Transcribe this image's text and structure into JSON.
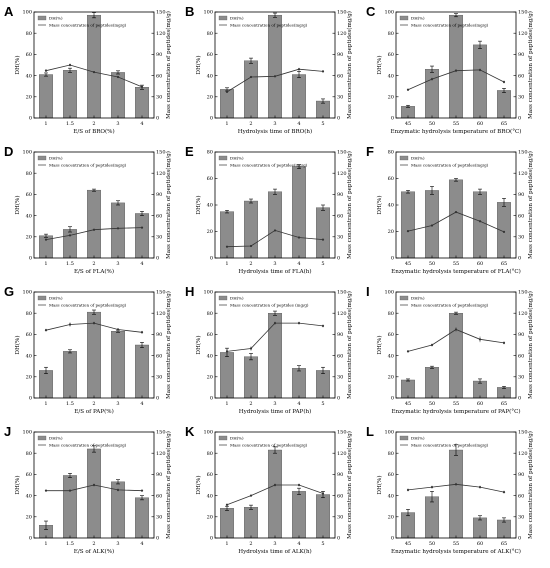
{
  "figure": {
    "legend_dh": "DH(%)",
    "y1_label": "DH(%)",
    "y2_label": "Mass concentration of peptides(mg/g)",
    "colors": {
      "bar": "#8c8c8c",
      "line": "#333333",
      "axis": "#000000"
    }
  },
  "chart_data": [
    {
      "id": "A",
      "type": "bar",
      "xlabel": "E/S of BRO(%)",
      "categories": [
        "1",
        "1.5",
        "2",
        "3",
        "4"
      ],
      "series": [
        {
          "name": "DH(%)",
          "values": [
            41,
            45,
            97,
            43,
            29
          ],
          "errors": [
            1.5,
            2,
            2.5,
            1.5,
            2
          ]
        },
        {
          "name": "Mass concentration of peptides(mg/g)",
          "values": [
            67,
            75,
            65,
            58,
            44
          ],
          "errors": [
            2,
            2,
            1.5,
            1.5,
            2
          ]
        }
      ],
      "ylim": [
        0,
        100
      ],
      "y2lim": [
        0,
        150
      ],
      "yticks": [
        0,
        20,
        40,
        60,
        80,
        100
      ],
      "y2ticks": [
        0,
        30,
        60,
        90,
        120,
        150
      ],
      "legend_line": "Mass concentration of peptides(mg/g)"
    },
    {
      "id": "B",
      "type": "bar",
      "xlabel": "Hydrolysis time of BRO(h)",
      "categories": [
        "1",
        "2",
        "3",
        "4",
        "5"
      ],
      "series": [
        {
          "name": "DH(%)",
          "values": [
            27,
            54,
            97,
            41,
            16
          ],
          "errors": [
            1.5,
            2.5,
            2,
            3,
            2
          ]
        },
        {
          "name": "Mass concentration of peptides(mg/g)",
          "values": [
            37,
            58,
            59,
            69,
            66
          ],
          "errors": [
            1,
            1.5,
            1.5,
            2,
            1.5
          ]
        }
      ],
      "ylim": [
        0,
        100
      ],
      "y2lim": [
        0,
        150
      ],
      "yticks": [
        0,
        20,
        40,
        60,
        80,
        100
      ],
      "y2ticks": [
        0,
        30,
        60,
        90,
        120,
        150
      ],
      "legend_line": "Mass concentration of peptides(mg/g)"
    },
    {
      "id": "C",
      "type": "bar",
      "xlabel": "Enzymatic hydrolysis temperature of BRO(°C)",
      "categories": [
        "45",
        "50",
        "55",
        "60",
        "65"
      ],
      "series": [
        {
          "name": "DH(%)",
          "values": [
            11,
            46,
            97,
            69,
            26
          ],
          "errors": [
            1,
            3,
            1.5,
            3.5,
            2
          ]
        },
        {
          "name": "Mass concentration of peptides(mg/g)",
          "values": [
            40,
            55,
            67,
            68,
            51
          ],
          "errors": [
            1.5,
            2,
            2,
            2,
            2
          ]
        }
      ],
      "ylim": [
        0,
        100
      ],
      "y2lim": [
        0,
        150
      ],
      "yticks": [
        0,
        20,
        40,
        60,
        80,
        100
      ],
      "y2ticks": [
        0,
        30,
        60,
        90,
        120,
        150
      ],
      "legend_line": "Mass concentration of peptides(mg/g)"
    },
    {
      "id": "D",
      "type": "bar",
      "xlabel": "E/S of FLA(%)",
      "categories": [
        "1",
        "1.5",
        "2",
        "3",
        "4"
      ],
      "series": [
        {
          "name": "DH(%)",
          "values": [
            21,
            27,
            64,
            52,
            42
          ],
          "errors": [
            1.5,
            2.5,
            1,
            2,
            2
          ]
        },
        {
          "name": "Mass concentration of peptides(mg/g)",
          "values": [
            26,
            32,
            40,
            42,
            43
          ],
          "errors": [
            0.5,
            0.5,
            0.5,
            0.5,
            0.5
          ]
        }
      ],
      "ylim": [
        0,
        100
      ],
      "y2lim": [
        0,
        150
      ],
      "yticks": [
        0,
        20,
        40,
        60,
        80,
        100
      ],
      "y2ticks": [
        0,
        30,
        60,
        90,
        120,
        150
      ],
      "legend_line": "Mass concentration of peptides(mg/g)"
    },
    {
      "id": "E",
      "type": "bar",
      "xlabel": "Hydrolysis time of FLA(h)",
      "categories": [
        "1",
        "2",
        "3",
        "4",
        "5"
      ],
      "series": [
        {
          "name": "DH(%)",
          "values": [
            35,
            43,
            50,
            69,
            38
          ],
          "errors": [
            1,
            1.5,
            2,
            1.5,
            2
          ]
        },
        {
          "name": "Mass concentration of peptides(mg/g)",
          "values": [
            16,
            17,
            39,
            29,
            26
          ],
          "errors": [
            0.5,
            0.5,
            1,
            1,
            0.5
          ]
        }
      ],
      "ylim": [
        0,
        80
      ],
      "y2lim": [
        0,
        150
      ],
      "yticks": [
        0,
        20,
        40,
        60,
        80
      ],
      "y2ticks": [
        0,
        30,
        60,
        90,
        120,
        150
      ],
      "legend_line": "Mass concentration of peptides(mg/g)"
    },
    {
      "id": "F",
      "type": "bar",
      "xlabel": "Enzymatic hydrolysis temperature of FLA(°C)",
      "categories": [
        "45",
        "50",
        "55",
        "60",
        "65"
      ],
      "series": [
        {
          "name": "DH(%)",
          "values": [
            50,
            51,
            59,
            50,
            42
          ],
          "errors": [
            1,
            3,
            1,
            2,
            3
          ]
        },
        {
          "name": "Mass concentration of peptides(mg/g)",
          "values": [
            38,
            46,
            65,
            52,
            37
          ],
          "errors": [
            1,
            1,
            1.5,
            1,
            1
          ]
        }
      ],
      "ylim": [
        0,
        80
      ],
      "y2lim": [
        0,
        150
      ],
      "yticks": [
        0,
        20,
        40,
        60,
        80
      ],
      "y2ticks": [
        0,
        30,
        60,
        90,
        120,
        150
      ],
      "legend_line": "Mass concentration of peptides(mg/g)"
    },
    {
      "id": "G",
      "type": "bar",
      "xlabel": "E/S of PAP(%)",
      "categories": [
        "1",
        "1.5",
        "2",
        "3",
        "4"
      ],
      "series": [
        {
          "name": "DH(%)",
          "values": [
            26,
            44,
            81,
            63,
            50
          ],
          "errors": [
            3,
            1.5,
            2,
            1,
            2.5
          ]
        },
        {
          "name": "Mass concentration of peptides(mg/g)",
          "values": [
            96,
            104,
            106,
            97,
            93
          ],
          "errors": [
            2,
            3,
            2,
            2,
            2
          ]
        }
      ],
      "ylim": [
        0,
        100
      ],
      "y2lim": [
        0,
        150
      ],
      "yticks": [
        0,
        20,
        40,
        60,
        80,
        100
      ],
      "y2ticks": [
        0,
        30,
        60,
        90,
        120,
        150
      ],
      "legend_line": "Mass concentration of peptides(mg/g)"
    },
    {
      "id": "H",
      "type": "bar",
      "xlabel": "Hydrolysis time of PAP(h)",
      "categories": [
        "1",
        "2",
        "3",
        "4",
        "5"
      ],
      "series": [
        {
          "name": "DH(%)",
          "values": [
            43,
            39,
            80,
            28,
            26
          ],
          "errors": [
            4,
            3,
            2,
            2.5,
            3
          ]
        },
        {
          "name": "Mass concentration of peptides (mg/g)",
          "values": [
            66,
            70,
            106,
            106,
            102
          ],
          "errors": [
            3,
            3,
            2,
            2,
            2
          ]
        }
      ],
      "ylim": [
        0,
        100
      ],
      "y2lim": [
        0,
        150
      ],
      "yticks": [
        0,
        20,
        40,
        60,
        80,
        100
      ],
      "y2ticks": [
        0,
        30,
        60,
        90,
        120,
        150
      ],
      "legend_line": "Mass concentration of peptides (mg/g)"
    },
    {
      "id": "I",
      "type": "bar",
      "xlabel": "Enzymatic hydrolysis temperature of PAP(°C)",
      "categories": [
        "45",
        "50",
        "55",
        "60",
        "65"
      ],
      "series": [
        {
          "name": "DH(%)",
          "values": [
            17,
            29,
            80,
            16,
            10
          ],
          "errors": [
            1,
            1,
            1,
            2,
            1
          ]
        },
        {
          "name": "Mass concentration of peptides(mg/g)",
          "values": [
            66,
            75,
            97,
            83,
            78
          ],
          "errors": [
            1.5,
            2,
            3,
            4,
            2
          ]
        }
      ],
      "ylim": [
        0,
        100
      ],
      "y2lim": [
        0,
        150
      ],
      "yticks": [
        0,
        20,
        40,
        60,
        80,
        100
      ],
      "y2ticks": [
        0,
        30,
        60,
        90,
        120,
        150
      ],
      "legend_line": "Mass concentration of peptides(mg/g)"
    },
    {
      "id": "J",
      "type": "bar",
      "xlabel": "E/S of ALK(%)",
      "categories": [
        "1",
        "1.5",
        "2",
        "3",
        "4"
      ],
      "series": [
        {
          "name": "DH(%)",
          "values": [
            12,
            59,
            84,
            53,
            38
          ],
          "errors": [
            4,
            2,
            3,
            2,
            2
          ]
        },
        {
          "name": "Mass concentration of peptides(mg/g)",
          "values": [
            67,
            67,
            75,
            68,
            67
          ],
          "errors": [
            1,
            1,
            2,
            2,
            1
          ]
        }
      ],
      "ylim": [
        0,
        100
      ],
      "y2lim": [
        0,
        150
      ],
      "yticks": [
        0,
        20,
        40,
        60,
        80,
        100
      ],
      "y2ticks": [
        0,
        30,
        60,
        90,
        120,
        150
      ],
      "legend_line": "Mass concentration of peptides(mg/g)"
    },
    {
      "id": "K",
      "type": "bar",
      "xlabel": "Hydrolysis time of ALK(h)",
      "categories": [
        "1",
        "2",
        "3",
        "4",
        "5"
      ],
      "series": [
        {
          "name": "DH(%)",
          "values": [
            28,
            29,
            83,
            44,
            41
          ],
          "errors": [
            2,
            2,
            3,
            3,
            3
          ]
        },
        {
          "name": "Mass concentration of peptides(mg/g)",
          "values": [
            47,
            60,
            75,
            75,
            63
          ],
          "errors": [
            1,
            1.5,
            2,
            2,
            1.5
          ]
        }
      ],
      "ylim": [
        0,
        100
      ],
      "y2lim": [
        0,
        150
      ],
      "yticks": [
        0,
        20,
        40,
        60,
        80,
        100
      ],
      "y2ticks": [
        0,
        30,
        60,
        90,
        120,
        150
      ],
      "legend_line": "Mass concentration of peptides(mg/g)"
    },
    {
      "id": "L",
      "type": "bar",
      "xlabel": "Enzymatic hydrolysis temperature of ALK(°C)",
      "categories": [
        "45",
        "50",
        "55",
        "60",
        "65"
      ],
      "series": [
        {
          "name": "DH(%)",
          "values": [
            24,
            39,
            83,
            19,
            17
          ],
          "errors": [
            3,
            5,
            5,
            2,
            2
          ]
        },
        {
          "name": "Mass concentration of peptides(mg/g)",
          "values": [
            68,
            72,
            76,
            72,
            65
          ],
          "errors": [
            2,
            2,
            2,
            2,
            2
          ]
        }
      ],
      "ylim": [
        0,
        100
      ],
      "y2lim": [
        0,
        150
      ],
      "yticks": [
        0,
        20,
        40,
        60,
        80,
        100
      ],
      "y2ticks": [
        0,
        30,
        60,
        90,
        120,
        150
      ],
      "legend_line": "Mass concentration of peptides(mg/g)"
    }
  ]
}
